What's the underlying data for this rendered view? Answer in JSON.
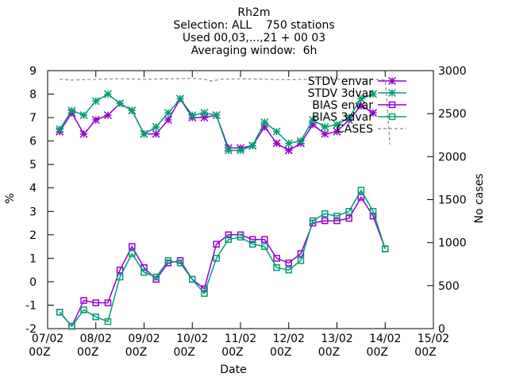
{
  "chart_data": {
    "type": "line",
    "title_lines": [
      "Rh2m",
      "Selection: ALL    750 stations",
      "Used 00,03,...,21 + 00 03",
      "Averaging window:  6h"
    ],
    "xlabel": "Date",
    "ylabel": "%",
    "y2label": "No cases",
    "x_ticks": [
      {
        "x": 0,
        "l1": "07/02",
        "l2": "00Z"
      },
      {
        "x": 1,
        "l1": "08/02",
        "l2": "00Z"
      },
      {
        "x": 2,
        "l1": "09/02",
        "l2": "00Z"
      },
      {
        "x": 3,
        "l1": "10/02",
        "l2": "00Z"
      },
      {
        "x": 4,
        "l1": "11/02",
        "l2": "00Z"
      },
      {
        "x": 5,
        "l1": "12/02",
        "l2": "00Z"
      },
      {
        "x": 6,
        "l1": "13/02",
        "l2": "00Z"
      },
      {
        "x": 7,
        "l1": "14/02",
        "l2": "00Z"
      },
      {
        "x": 8,
        "l1": "15/02",
        "l2": "00Z"
      }
    ],
    "xlim": [
      0,
      8
    ],
    "ylim": [
      -2,
      9
    ],
    "y_ticks": [
      -2,
      -1,
      0,
      1,
      2,
      3,
      4,
      5,
      6,
      7,
      8,
      9
    ],
    "y2lim": [
      0,
      3000
    ],
    "y2_ticks": [
      0,
      500,
      1000,
      1500,
      2000,
      2500,
      3000
    ],
    "x": [
      0.25,
      0.5,
      0.75,
      1.0,
      1.25,
      1.5,
      1.75,
      2.0,
      2.25,
      2.5,
      2.75,
      3.0,
      3.25,
      3.5,
      3.75,
      4.0,
      4.25,
      4.5,
      4.75,
      5.0,
      5.25,
      5.5,
      5.75,
      6.0,
      6.25,
      6.5,
      6.75,
      7.0,
      7.25
    ],
    "series": [
      {
        "name": "STDV envar",
        "color": "#9400d3",
        "marker": "star",
        "values": [
          6.4,
          7.2,
          6.3,
          6.9,
          7.1,
          7.6,
          7.3,
          6.3,
          6.3,
          6.9,
          7.8,
          7.0,
          7.0,
          7.1,
          5.7,
          5.7,
          5.8,
          6.6,
          5.9,
          5.6,
          5.9,
          6.7,
          6.3,
          6.4,
          6.9,
          7.5,
          7.2,
          null,
          null
        ]
      },
      {
        "name": "STDV 3dvar",
        "color": "#009e73",
        "marker": "star",
        "values": [
          6.5,
          7.3,
          7.1,
          7.7,
          8.0,
          7.6,
          7.3,
          6.3,
          6.6,
          7.2,
          7.8,
          7.1,
          7.2,
          7.1,
          5.6,
          5.6,
          5.8,
          6.8,
          6.4,
          5.9,
          6.0,
          6.9,
          6.6,
          6.7,
          7.0,
          7.8,
          8.0,
          null,
          null
        ]
      },
      {
        "name": "BIAS envar",
        "color": "#9400d3",
        "marker": "square",
        "values": [
          -1.3,
          -1.9,
          -0.8,
          -0.9,
          -0.9,
          0.5,
          1.5,
          0.6,
          0.1,
          0.8,
          0.9,
          0.1,
          -0.3,
          1.6,
          2.0,
          2.0,
          1.8,
          1.8,
          1.0,
          0.8,
          1.2,
          2.5,
          2.6,
          2.6,
          2.7,
          3.6,
          2.8,
          1.4,
          null
        ]
      },
      {
        "name": "BIAS 3dvar",
        "color": "#009e73",
        "marker": "square",
        "values": [
          -1.3,
          -1.9,
          -1.2,
          -1.5,
          -1.7,
          0.2,
          1.2,
          0.4,
          0.2,
          0.9,
          0.8,
          0.1,
          -0.5,
          1.0,
          1.8,
          1.9,
          1.6,
          1.5,
          0.6,
          0.5,
          0.9,
          2.6,
          2.9,
          2.8,
          3.0,
          3.9,
          3.0,
          1.4,
          null
        ]
      },
      {
        "name": "CASES",
        "color": "#888888",
        "dashed": true,
        "axis": "y2",
        "x": [
          0.25,
          0.5,
          1.0,
          1.5,
          2.0,
          2.5,
          3.0,
          3.25,
          3.4,
          3.6,
          4.0,
          4.5,
          5.0,
          5.5,
          6.0,
          6.5,
          7.0,
          7.1
        ],
        "values": [
          2900,
          2890,
          2900,
          2905,
          2900,
          2905,
          2910,
          2900,
          2880,
          2900,
          2905,
          2900,
          2895,
          2900,
          2900,
          2905,
          2890,
          2140
        ]
      }
    ],
    "legend": "top-right",
    "grid": false
  }
}
